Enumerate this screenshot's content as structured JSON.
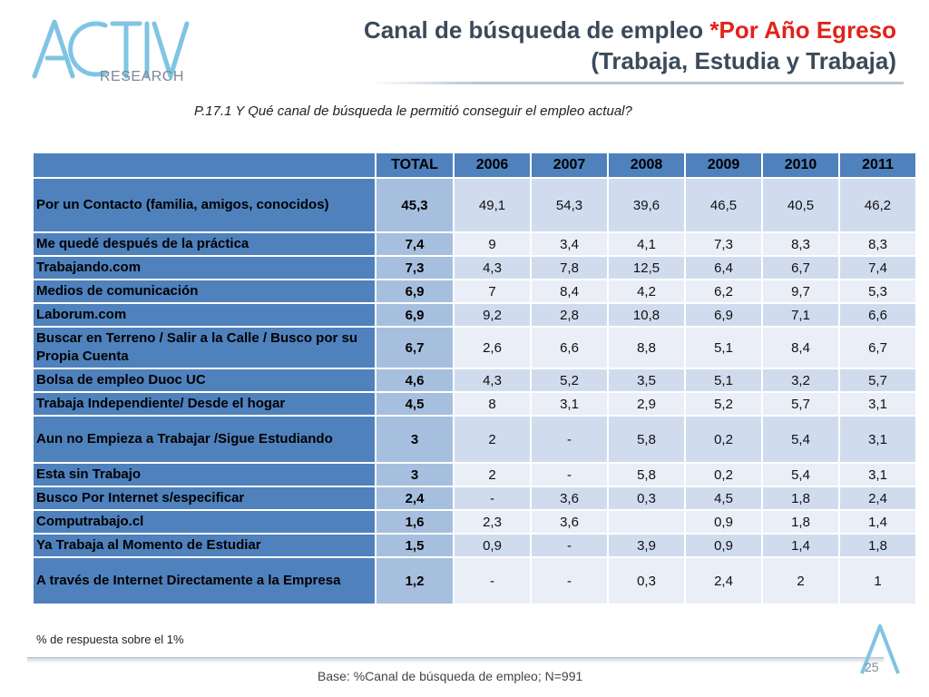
{
  "logo": {
    "text": "RESEARCH"
  },
  "title": {
    "line1": "Canal de búsqueda de empleo ",
    "line1_accent": "*Por Año Egreso",
    "line2": "(Trabaja, Estudia y Trabaja)"
  },
  "question": "P.17.1  Y Qué canal de búsqueda le permitió conseguir el empleo actual?",
  "table": {
    "headers": [
      "",
      "TOTAL",
      "2006",
      "2007",
      "2008",
      "2009",
      "2010",
      "2011"
    ],
    "rows": [
      {
        "label": "Por un Contacto (familia, amigos, conocidos)",
        "total": "45,3",
        "values": [
          "49,1",
          "54,3",
          "39,6",
          "46,5",
          "40,5",
          "46,2"
        ]
      },
      {
        "label": "Me quedé después de la práctica",
        "total": "7,4",
        "values": [
          "9",
          "3,4",
          "4,1",
          "7,3",
          "8,3",
          "8,3"
        ]
      },
      {
        "label": "Trabajando.com",
        "total": "7,3",
        "values": [
          "4,3",
          "7,8",
          "12,5",
          "6,4",
          "6,7",
          "7,4"
        ]
      },
      {
        "label": "Medios de comunicación",
        "total": "6,9",
        "values": [
          "7",
          "8,4",
          "4,2",
          "6,2",
          "9,7",
          "5,3"
        ]
      },
      {
        "label": "Laborum.com",
        "total": "6,9",
        "values": [
          "9,2",
          "2,8",
          "10,8",
          "6,9",
          "7,1",
          "6,6"
        ]
      },
      {
        "label": "Buscar en Terreno / Salir a la Calle / Busco por su Propia Cuenta",
        "total": "6,7",
        "values": [
          "2,6",
          "6,6",
          "8,8",
          "5,1",
          "8,4",
          "6,7"
        ]
      },
      {
        "label": "Bolsa de empleo  Duoc UC",
        "total": "4,6",
        "values": [
          "4,3",
          "5,2",
          "3,5",
          "5,1",
          "3,2",
          "5,7"
        ]
      },
      {
        "label": "Trabaja Independiente/ Desde el hogar",
        "total": "4,5",
        "values": [
          "8",
          "3,1",
          "2,9",
          "5,2",
          "5,7",
          "3,1"
        ]
      },
      {
        "label": "Aun no Empieza a Trabajar /Sigue Estudiando",
        "total": "3",
        "values": [
          "2",
          "-",
          "5,8",
          "0,2",
          "5,4",
          "3,1"
        ]
      },
      {
        "label": "Esta sin Trabajo",
        "total": "3",
        "values": [
          "2",
          "-",
          "5,8",
          "0,2",
          "5,4",
          "3,1"
        ]
      },
      {
        "label": "Busco Por Internet s/especificar",
        "total": "2,4",
        "values": [
          "-",
          "3,6",
          "0,3",
          "4,5",
          "1,8",
          "2,4"
        ]
      },
      {
        "label": "Computrabajo.cl",
        "total": "1,6",
        "values": [
          "2,3",
          "3,6",
          "",
          "0,9",
          "1,8",
          "1,4"
        ]
      },
      {
        "label": "Ya Trabaja al Momento de Estudiar",
        "total": "1,5",
        "values": [
          "0,9",
          "-",
          "3,9",
          "0,9",
          "1,4",
          "1,8"
        ]
      },
      {
        "label": "A través de Internet Directamente a la Empresa",
        "total": "1,2",
        "values": [
          "-",
          "-",
          "0,3",
          "2,4",
          "2",
          "1"
        ]
      }
    ]
  },
  "note": "% de respuesta sobre el 1%",
  "base": "Base: %Canal de búsqueda de empleo; N=991",
  "page_number": "25",
  "colors": {
    "header": "#4f81bd",
    "total_cell": "#a7bfde",
    "row_odd": "#d0dcee",
    "row_even": "#e9eef7",
    "accent": "#e2231a",
    "title": "#3b4a5a"
  }
}
